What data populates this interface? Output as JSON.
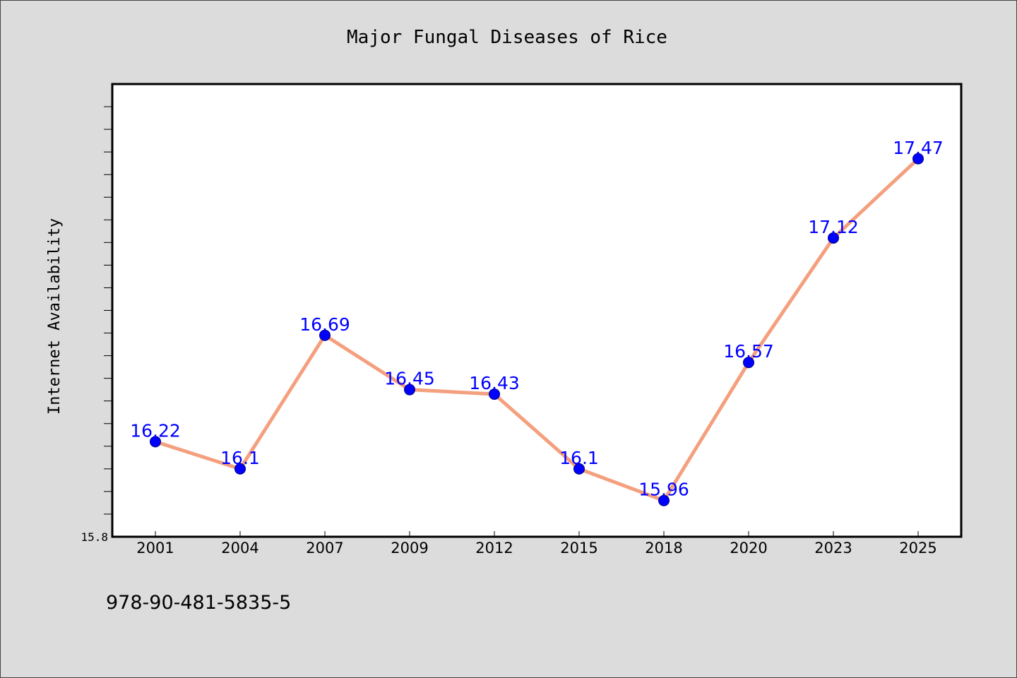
{
  "chart_data": {
    "type": "line",
    "title": "Major Fungal Diseases of Rice",
    "xlabel": "",
    "ylabel": "Internet Availability",
    "categories": [
      "2001",
      "2004",
      "2007",
      "2009",
      "2012",
      "2015",
      "2018",
      "2020",
      "2023",
      "2025"
    ],
    "values": [
      16.22,
      16.1,
      16.69,
      16.45,
      16.43,
      16.1,
      15.96,
      16.57,
      17.12,
      17.47
    ],
    "value_labels": [
      "16.22",
      "16.1",
      "16.69",
      "16.45",
      "16.43",
      "16.1",
      "15.96",
      "16.57",
      "17.12",
      "17.47"
    ],
    "ylim": [
      15.8,
      17.8
    ],
    "yticks": [
      {
        "value": 15.8,
        "label": "15.8"
      }
    ],
    "grid": false,
    "legend": "none",
    "colors": {
      "line": "#f4a07e",
      "marker": "#0000ff",
      "label": "#0000ff",
      "plot_background": "#ffffff",
      "figure_background": "#dcdcdc"
    }
  },
  "footer": {
    "isbn": "978-90-481-5835-5"
  }
}
